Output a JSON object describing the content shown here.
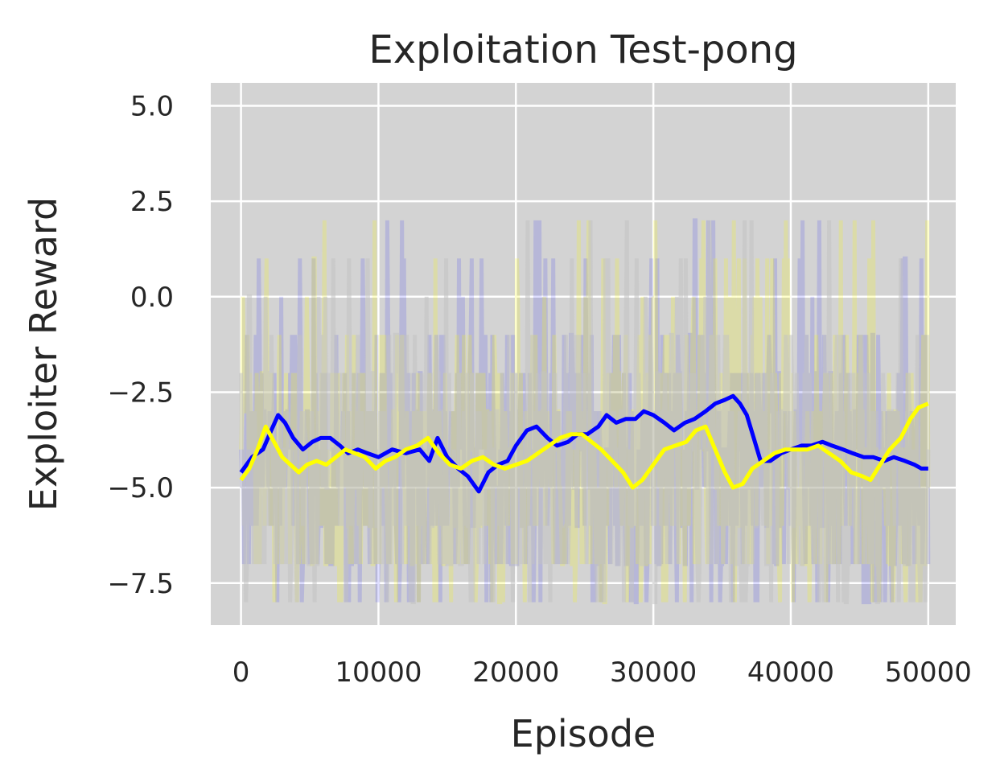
{
  "colors": {
    "plot_background": "#d3d3d3",
    "grid": "#ffffff",
    "series_blue": "#0000ff",
    "series_yellow": "#ffff00",
    "raw_overlay": "#c2c2c2"
  },
  "chart_data": {
    "type": "line",
    "title": "Exploitation Test-pong",
    "xlabel": "Episode",
    "ylabel": "Exploiter Reward",
    "xlim": [
      -2200,
      52000
    ],
    "ylim": [
      -8.6,
      5.6
    ],
    "grid": true,
    "legend": "none",
    "x_ticks": [
      0,
      10000,
      20000,
      30000,
      40000,
      50000
    ],
    "x_tick_labels": [
      "0",
      "10000",
      "20000",
      "30000",
      "40000",
      "50000"
    ],
    "y_ticks": [
      5.0,
      2.5,
      0.0,
      -2.5,
      -5.0,
      -7.5
    ],
    "y_tick_labels": [
      "5.0",
      "2.5",
      "0.0",
      "−2.5",
      "−5.0",
      "−7.5"
    ],
    "series": [
      {
        "color": "#0000ff",
        "x": [
          0,
          800,
          1600,
          2200,
          2700,
          3200,
          3800,
          4500,
          5200,
          5800,
          6500,
          7200,
          7800,
          8500,
          9200,
          10000,
          11000,
          12000,
          13000,
          13700,
          14300,
          15000,
          15800,
          16500,
          17300,
          18000,
          18700,
          19400,
          20000,
          20800,
          21500,
          22300,
          23000,
          23800,
          24500,
          25200,
          26000,
          26600,
          27300,
          28000,
          28700,
          29300,
          30000,
          30800,
          31500,
          32300,
          33000,
          33800,
          34500,
          35200,
          35800,
          36300,
          36800,
          37300,
          37800,
          38500,
          39300,
          40000,
          40800,
          41500,
          42300,
          43000,
          43800,
          44500,
          45300,
          46000,
          46800,
          47500,
          48300,
          49000,
          49500,
          50000
        ],
        "y": [
          -4.6,
          -4.2,
          -4.0,
          -3.5,
          -3.1,
          -3.3,
          -3.7,
          -4.0,
          -3.8,
          -3.7,
          -3.7,
          -3.9,
          -4.1,
          -4.0,
          -4.1,
          -4.2,
          -4.0,
          -4.1,
          -4.0,
          -4.3,
          -3.7,
          -4.2,
          -4.5,
          -4.7,
          -5.1,
          -4.6,
          -4.4,
          -4.3,
          -3.9,
          -3.5,
          -3.4,
          -3.7,
          -3.9,
          -3.8,
          -3.6,
          -3.6,
          -3.4,
          -3.1,
          -3.3,
          -3.2,
          -3.2,
          -3.0,
          -3.1,
          -3.3,
          -3.5,
          -3.3,
          -3.2,
          -3.0,
          -2.8,
          -2.7,
          -2.6,
          -2.8,
          -3.1,
          -3.7,
          -4.3,
          -4.3,
          -4.1,
          -4.0,
          -3.9,
          -3.9,
          -3.8,
          -3.9,
          -4.0,
          -4.1,
          -4.2,
          -4.2,
          -4.3,
          -4.2,
          -4.3,
          -4.4,
          -4.5,
          -4.5
        ]
      },
      {
        "color": "#ffff00",
        "x": [
          0,
          600,
          1200,
          1800,
          2400,
          3000,
          3600,
          4200,
          4800,
          5500,
          6200,
          6900,
          7600,
          8300,
          9000,
          9800,
          10500,
          11200,
          12000,
          12800,
          13600,
          14400,
          15200,
          16000,
          16800,
          17600,
          18400,
          19200,
          20000,
          20800,
          21600,
          22400,
          23200,
          24000,
          24800,
          25500,
          26200,
          27000,
          27800,
          28500,
          29200,
          30000,
          30800,
          31600,
          32400,
          33100,
          33800,
          34500,
          35200,
          35800,
          36500,
          37200,
          38000,
          38800,
          39600,
          40400,
          41200,
          42000,
          42800,
          43600,
          44400,
          45200,
          45800,
          46500,
          47200,
          48000,
          48700,
          49300,
          50000
        ],
        "y": [
          -4.8,
          -4.5,
          -4.0,
          -3.4,
          -3.8,
          -4.2,
          -4.4,
          -4.6,
          -4.4,
          -4.3,
          -4.4,
          -4.2,
          -4.0,
          -4.1,
          -4.2,
          -4.5,
          -4.3,
          -4.2,
          -4.0,
          -3.9,
          -3.7,
          -4.1,
          -4.4,
          -4.5,
          -4.3,
          -4.2,
          -4.4,
          -4.5,
          -4.4,
          -4.3,
          -4.1,
          -3.9,
          -3.7,
          -3.6,
          -3.6,
          -3.8,
          -4.0,
          -4.3,
          -4.6,
          -5.0,
          -4.8,
          -4.4,
          -4.0,
          -3.9,
          -3.8,
          -3.5,
          -3.4,
          -4.0,
          -4.6,
          -5.0,
          -4.9,
          -4.5,
          -4.3,
          -4.1,
          -4.0,
          -4.0,
          -4.0,
          -3.9,
          -4.1,
          -4.3,
          -4.6,
          -4.7,
          -4.8,
          -4.4,
          -4.0,
          -3.7,
          -3.2,
          -2.9,
          -2.8
        ]
      }
    ]
  }
}
